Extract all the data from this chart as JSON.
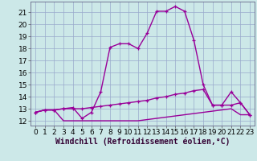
{
  "xlabel": "Windchill (Refroidissement éolien,°C)",
  "bg_color": "#cce8e8",
  "line_color": "#990099",
  "grid_color": "#99aacc",
  "x_ticks": [
    0,
    1,
    2,
    3,
    4,
    5,
    6,
    7,
    8,
    9,
    10,
    11,
    12,
    13,
    14,
    15,
    16,
    17,
    18,
    19,
    20,
    21,
    22,
    23
  ],
  "y_ticks": [
    12,
    13,
    14,
    15,
    16,
    17,
    18,
    19,
    20,
    21
  ],
  "ylim": [
    11.6,
    21.9
  ],
  "xlim": [
    -0.5,
    23.5
  ],
  "line1_x": [
    0,
    1,
    2,
    3,
    4,
    5,
    6,
    7,
    8,
    9,
    10,
    11,
    12,
    13,
    14,
    15,
    16,
    17,
    18,
    19,
    20,
    21,
    22,
    23
  ],
  "line1_y": [
    12.7,
    12.9,
    12.9,
    13.0,
    13.1,
    12.2,
    12.7,
    14.4,
    18.1,
    18.4,
    18.4,
    18.0,
    19.3,
    21.1,
    21.1,
    21.5,
    21.1,
    18.7,
    15.0,
    13.3,
    13.3,
    14.4,
    13.5,
    12.5
  ],
  "line2_x": [
    0,
    1,
    2,
    3,
    4,
    5,
    6,
    7,
    8,
    9,
    10,
    11,
    12,
    13,
    14,
    15,
    16,
    17,
    18,
    19,
    20,
    21,
    22,
    23
  ],
  "line2_y": [
    12.7,
    12.9,
    12.9,
    13.0,
    13.0,
    13.0,
    13.1,
    13.2,
    13.3,
    13.4,
    13.5,
    13.6,
    13.7,
    13.9,
    14.0,
    14.2,
    14.3,
    14.5,
    14.6,
    13.3,
    13.3,
    13.3,
    13.5,
    12.5
  ],
  "line3_x": [
    0,
    1,
    2,
    3,
    4,
    5,
    6,
    7,
    8,
    9,
    10,
    11,
    12,
    13,
    14,
    15,
    16,
    17,
    18,
    19,
    20,
    21,
    22,
    23
  ],
  "line3_y": [
    12.7,
    12.9,
    12.9,
    12.0,
    12.0,
    12.0,
    12.0,
    12.0,
    12.0,
    12.0,
    12.0,
    12.0,
    12.1,
    12.2,
    12.3,
    12.4,
    12.5,
    12.6,
    12.7,
    12.8,
    12.9,
    13.0,
    12.5,
    12.5
  ],
  "tick_fontsize": 6.5,
  "label_fontsize": 7,
  "lw": 1.0,
  "marker_size": 3.0
}
